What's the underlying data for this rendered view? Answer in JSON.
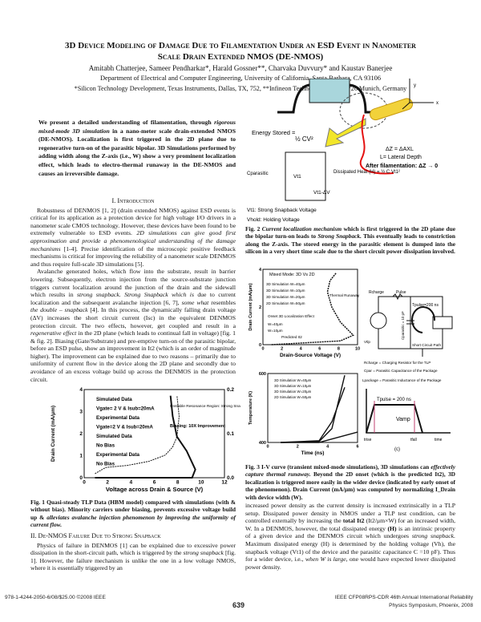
{
  "title_line1": "3D Device Modeling of Damage Due to Filamentation Under an ESD Event in Nanometer",
  "title_line2": "Scale Drain Extended NMOS (DE-NMOS)",
  "authors": "Amitabh Chatterjee, Sameer Pendharkar*, Harald Gossner**, Charvaka Duvvury* and Kaustav Banerjee",
  "affiliation1": "Department of Electrical and Computer Engineering, University of California, Santa Barbara, CA 93106",
  "affiliation2": "*Silicon Technology Development, Texas Instruments, Dallas, TX, 752, **Infineon Technologies AG, 81726 Munich, Germany",
  "abstract": {
    "a": "We present a detailed understanding of filamentation, through ",
    "b": "rigorous mixed-mode 3D simulation",
    "c": " in a nano-meter scale drain-extended NMOS (DE-NMOS). Localization is first triggered in the 2D plane due to regenerative turn-on of the parasitic bipolar. 3D Simulations performed by adding width along the Z-axis (i.e., W) show a very prominent localization effect, which leads to electro-thermal runaway in the DE-NMOS and causes an irreversible damage."
  },
  "sec1_title": "I. Introduction",
  "intro_p1a": "Robustness of DENMOS [1, 2] (drain extended NMOS) against ESD events is critical for its application as a protection device for high voltage I/O drivers in a nanometer scale CMOS technology. However, these devices have been found to be extremely vulnerable to ESD events. ",
  "intro_p1b": "2D simulations can give good first approximation and provide a phenomenological understanding of the damage mechanisms",
  "intro_p1c": " [1-4]. Precise identification of the microscopic positive feedback mechanisms is critical for improving the reliability of a nanometer scale DENMOS and thus require full-scale 3D simulations [5].",
  "intro_p2a": "Avalanche generated holes, which flow into the substrate, result in barrier lowering. Subsequently, electron injection from the source-substrate junction triggers current localization around the junction of the drain and the sidewall which results in ",
  "intro_p2b": "strong snapback. Strong Snapback which is",
  "intro_p2c": " due to current localization and the subsequent avalanche injection [6, 7], ",
  "intro_p2d": "some what",
  "intro_p2e": " resembles ",
  "intro_p2f": "the double – snapback",
  "intro_p2g": " [4]. In this process, the dynamically falling drain voltage (ΔV) increases the short circuit current (Isc) in the equivalent DENMOS protection circuit. The two effects, however, get coupled and result in a ",
  "intro_p2h": "regenerative effect",
  "intro_p2i": " in the 2D plane (which leads to continual fall in voltage) [fig. 1 & fig. 2]. Biasing (Gate/Substrate) and pre-emptive turn-on of the parasitic bipolar, before an ESD pulse, show an improvement in It2 (which is an order of magnitude higher). The improvement can be explained due to two reasons – primarily due to uniformity of current flow in the device along the 2D plane and secondly due to avoidance of an excess voltage build up across the DENMOS in the protection circuit.",
  "fig1": {
    "ylabel": "Drain Current (mA/μm)",
    "xlabel": "Voltage across Drain & Source (V)",
    "xticks": [
      "0",
      "2",
      "4",
      "6",
      "8",
      "10",
      "12"
    ],
    "yticks": [
      "0",
      "1",
      "2",
      "3",
      "4"
    ],
    "y2ticks": [
      "0.0",
      "0.1",
      "0.2"
    ],
    "legend": [
      "Simulated Data",
      "Vgate= 2 V & Isub=20mA",
      "Experimental Data",
      "Vgate=2 V & Isub=20mA",
      "Simulated Data",
      "No Bias",
      "Experimental Data",
      "No Bias"
    ],
    "annot": [
      "Unstable Resonance Region: Strong Snapback",
      "Biasing: 10X Improvement"
    ]
  },
  "fig1_caption": {
    "a": "Fig. 1 Quasi-steady TLP Data (HBM model) compared with simulations (with & without bias). Minority carriers under biasing, prevents excessive voltage build up & ",
    "b": "alleviates avalanche injection phenomenon by improving the uniformity of current flow."
  },
  "sec2_title": "II. De-NMOS Failure Due to Strong Snapback",
  "sec2_p1a": "Physics of failure in DENMOS [1] can be explained due to excessive power dissipation in the short-circuit path, which is triggered by the ",
  "sec2_p1b": "strong snapback",
  "sec2_p1c": " [fig. 1]. However, the failure mechanism is unlike the one in a low voltage NMOS, where it is essentially triggered by an",
  "fig2": {
    "energy": "Energy Stored =",
    "formula": "½ CV²",
    "dz": "ΔZ = ΔAXL",
    "ldepth": "L= Lateral Depth",
    "after": "After filamentation: ΔZ → 0",
    "cpar": "Cparasitic",
    "vt1": "Vt1",
    "vt1dv": "Vt1-ΔV",
    "heat": "Dissipated Heat (H) = ½ C Vt1²",
    "vt1label": "Vt1: Strong Snapback Voltage",
    "vhold": "Vhold: Holding Voltage",
    "axis_y": "y",
    "axis_x": "x"
  },
  "fig2_caption": {
    "a": "Fig. 2 ",
    "b": "Current localization mechanism",
    "c": " which is first triggered in the 2D plane due the bipolar turn-on leads to ",
    "d": "Strong Snapback.",
    "e": " This eventually leads to constriction along the Z-axis. The stored energy in the parasitic element is dumped into the silicon in a very short time scale due to the short circuit power dissipation involved."
  },
  "fig3a": {
    "title": "Mixed Mode: 3D Vs 2D",
    "ylabel": "Drain Current (mA/μm)",
    "xlabel": "Drain-Source Voltage (V)",
    "xticks": [
      "0",
      "2",
      "4",
      "6",
      "8",
      "10"
    ],
    "yticks": [
      "0",
      "2",
      "4"
    ],
    "legend": [
      "3D Simulation W=40μm",
      "3D Simulation W=10μm",
      "3D Simulation W=20μm",
      "2D Simulation W=50μm"
    ],
    "annot": [
      "Thermal Runaway",
      "Onset 3D Localization Effect",
      "W=40μm",
      "W=10μm",
      "Predicted It2"
    ]
  },
  "fig3_circuit": {
    "rcharge": "Rcharge",
    "pulse": "Pulse",
    "tpulse": "Tpulse=200 ns",
    "cpar": "Cparasitic = 10 pF",
    "short": "Short Circuit Path",
    "vtlp": "Vtlp",
    "note1": "Rcharge = Charging Resistor for the TLP",
    "note2": "Cpar = Parasitic Capacitance of the Package",
    "note3": "Lpackage = Parasitic Inductance of the Package",
    "tpw": "Tpulse = 200 ns",
    "vamp": "Vamp",
    "trise": "trise",
    "tfall": "tfall",
    "time": "time",
    "label": "(c)"
  },
  "fig3b": {
    "ylabel": "Temperature (K)",
    "xlabel": "Time (ns)",
    "xticks": [
      "0",
      "2",
      "4",
      "6"
    ],
    "yticks": [
      "400",
      "600"
    ],
    "legend": [
      "3D Simulation W=40μm",
      "3D Simulation W=10μm",
      "3D Simulation W=20μm",
      "2D Simulation W=50μm"
    ]
  },
  "fig3_caption": {
    "a": "Fig. 3 I-V curve (transient mixed-mode simulations), 3D simulations can ",
    "b": "effectively capture thermal runaway.",
    "c": " Beyond the 2D onset (which is the predicted It2), 3D localization is triggered more easily in the wider device (indicated by early onset of the phenomenon). Drain Current (mA/μm) was computed by normalizing I_Drain with device width (W)."
  },
  "right_p1a": "increased power density as the current density is increased extrinsically in a TLP setup. Dissipated power density in NMOS under a TLP test condition, can be controlled externally by increasing the ",
  "right_p1b": "total It2",
  "right_p1c": " (It2/μm×W) for an increased width, W. In a DENMOS, however, the total dissipated energy ",
  "right_p1d": "(H)",
  "right_p1e": " is an intrinsic property of a given device and the DENMOS circuit which undergoes ",
  "right_p1f": "strong snapback.",
  "right_p1g": " Maximum dissipated energy (H) is determined by the holding voltage (Vh), the snapback voltage (Vt1) of the device and the parasitic capacitance C =10 pF). Thus for a wider device, i.e., ",
  "right_p1h": "when W is large,",
  "right_p1i": " one would have expected lower dissipated power density.",
  "footer_left": "978-1-4244-2050-6/08/$25.00 ©2008 IEEE",
  "page_number": "639",
  "footer_right1": "IEEE CFP08RPS-CDR 46th Annual International Reliability",
  "footer_right2": "Physics Symposium, Phoenix, 2008"
}
